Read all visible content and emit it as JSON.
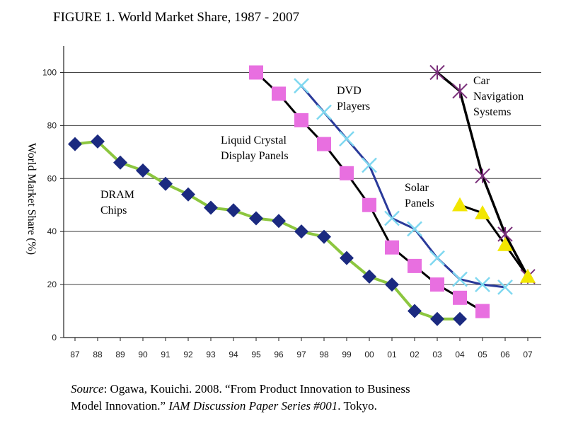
{
  "chart_data": {
    "type": "line",
    "title": "FIGURE 1. World Market Share, 1987 - 2007",
    "xlabel": "",
    "ylabel": "World Market Share (%)",
    "categories": [
      "87",
      "88",
      "89",
      "90",
      "91",
      "92",
      "93",
      "94",
      "95",
      "96",
      "97",
      "98",
      "99",
      "00",
      "01",
      "02",
      "03",
      "04",
      "05",
      "06",
      "07"
    ],
    "yticks": [
      0,
      20,
      40,
      60,
      80,
      100
    ],
    "ylim": [
      0,
      110
    ],
    "grid": "horizontal",
    "legend": "none",
    "series": [
      {
        "name": "DRAM Chips",
        "label_lines": [
          "DRAM",
          "Chips"
        ],
        "marker": "diamond",
        "line_color": "#8cc63f",
        "marker_color": "#1b2a80",
        "values": [
          73,
          74,
          66,
          63,
          58,
          54,
          49,
          48,
          45,
          44,
          40,
          38,
          30,
          23,
          20,
          10,
          7,
          7,
          null,
          null,
          null
        ]
      },
      {
        "name": "Liquid Crystal Display Panels",
        "label_lines": [
          "Liquid Crystal",
          "Display Panels"
        ],
        "marker": "square",
        "line_color": "#000000",
        "marker_color": "#e86fe0",
        "values": [
          null,
          null,
          null,
          null,
          null,
          null,
          null,
          null,
          100,
          92,
          82,
          73,
          62,
          50,
          34,
          27,
          20,
          15,
          10,
          null,
          null
        ]
      },
      {
        "name": "DVD Players",
        "label_lines": [
          "DVD",
          "Players"
        ],
        "marker": "x",
        "line_color": "#2a3a9a",
        "marker_color": "#7fd8f0",
        "values": [
          null,
          null,
          null,
          null,
          null,
          null,
          null,
          null,
          null,
          null,
          95,
          85,
          75,
          65,
          45,
          41,
          30,
          22,
          20,
          19,
          null
        ]
      },
      {
        "name": "Car Navigation Systems",
        "label_lines": [
          "Car",
          "Navigation",
          "Systems"
        ],
        "marker": "asterisk",
        "line_color": "#000000",
        "marker_color": "#7a2f7a",
        "values": [
          null,
          null,
          null,
          null,
          null,
          null,
          null,
          null,
          null,
          null,
          null,
          null,
          null,
          null,
          null,
          null,
          100,
          93,
          61,
          39,
          23
        ]
      },
      {
        "name": "Solar Panels",
        "label_lines": [
          "Solar",
          "Panels"
        ],
        "marker": "triangle",
        "line_color": "#000000",
        "marker_color": "#f2e600",
        "values": [
          null,
          null,
          null,
          null,
          null,
          null,
          null,
          null,
          null,
          null,
          null,
          null,
          null,
          null,
          null,
          null,
          null,
          50,
          47,
          35,
          23
        ]
      }
    ]
  },
  "source": {
    "label": "Source",
    "text1": ": Ogawa, Kouichi. 2008. “From Product Innovation to Business",
    "text2a": "Model Innovation.” ",
    "italic": "IAM Discussion Paper Series #001",
    "text2b": ". Tokyo."
  }
}
